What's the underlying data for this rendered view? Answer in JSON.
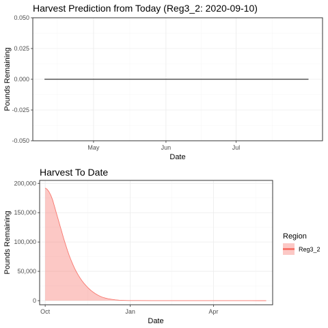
{
  "chart_data": [
    {
      "type": "line",
      "title": "Harvest Prediction from Today (Reg3_2: 2020-09-10)",
      "xlabel": "Date",
      "ylabel": "Pounds Remaining",
      "x_ticks": [
        "May",
        "Jun",
        "Jul"
      ],
      "y_ticks": [
        "0.050",
        "0.025",
        "0.000",
        "-0.025",
        "-0.050"
      ],
      "ylim": [
        -0.05,
        0.05
      ],
      "xlim": [
        "2020-04-05",
        "2020-08-07"
      ],
      "series": [
        {
          "x": [
            "2020-04-10",
            "2020-08-01"
          ],
          "values": [
            0,
            0
          ],
          "color": "#000000"
        }
      ],
      "grid": true
    },
    {
      "type": "area",
      "title": "Harvest To Date",
      "xlabel": "Date",
      "ylabel": "Pounds Remaining",
      "x_ticks": [
        "Oct",
        "Jan",
        "Apr"
      ],
      "y_ticks": [
        "200,000",
        "150,000",
        "100,000",
        "50,000",
        "0"
      ],
      "ylim": [
        -7000,
        205000
      ],
      "xlim": [
        "2020-09-25",
        "2021-06-04"
      ],
      "legend": {
        "title": "Region",
        "position": "right",
        "entries": [
          "Reg3_2"
        ]
      },
      "series": [
        {
          "name": "Reg3_2",
          "color": "#f8766d",
          "fill": "#f8766d",
          "x": [
            "2020-10-01",
            "2020-10-03",
            "2020-10-05",
            "2020-10-07",
            "2020-10-09",
            "2020-10-11",
            "2020-10-13",
            "2020-10-15",
            "2020-10-17",
            "2020-10-19",
            "2020-10-21",
            "2020-10-23",
            "2020-10-25",
            "2020-10-27",
            "2020-10-29",
            "2020-10-31",
            "2020-11-02",
            "2020-11-04",
            "2020-11-06",
            "2020-11-08",
            "2020-11-10",
            "2020-11-12",
            "2020-11-14",
            "2020-11-16",
            "2020-11-18",
            "2020-11-20",
            "2020-11-22",
            "2020-11-24",
            "2020-11-26",
            "2020-11-28",
            "2020-11-30",
            "2020-12-02",
            "2020-12-05",
            "2020-12-08",
            "2020-12-12",
            "2020-12-16",
            "2020-12-20",
            "2020-12-25",
            "2020-12-30",
            "2021-01-10",
            "2021-01-25",
            "2021-02-10",
            "2021-03-01",
            "2021-03-20",
            "2021-04-05",
            "2021-04-20",
            "2021-05-01",
            "2021-05-10",
            "2021-05-20",
            "2021-05-28"
          ],
          "values": [
            192000,
            190000,
            186000,
            180000,
            172000,
            161000,
            150000,
            139000,
            128000,
            117000,
            106000,
            96000,
            86000,
            77000,
            69000,
            61500,
            54500,
            48500,
            43000,
            38000,
            33500,
            29500,
            26000,
            22500,
            19500,
            16800,
            14400,
            12200,
            10300,
            8600,
            7100,
            5800,
            4400,
            3300,
            2200,
            1400,
            800,
            450,
            250,
            150,
            100,
            80,
            60,
            50,
            40,
            30,
            20,
            10,
            5,
            0
          ]
        }
      ],
      "grid": true
    }
  ]
}
